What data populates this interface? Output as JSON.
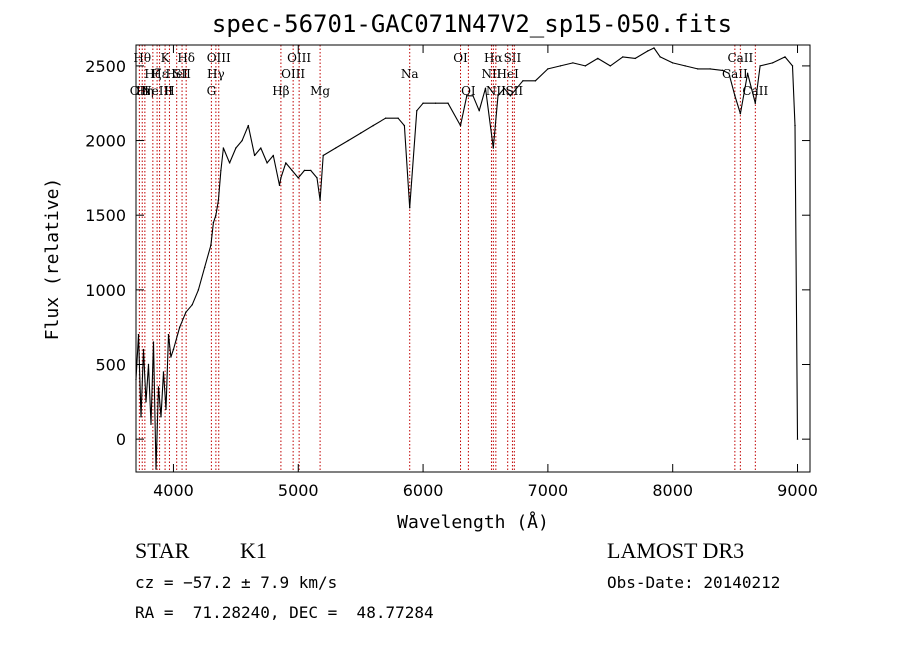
{
  "chart_data": {
    "type": "line",
    "title": "spec-56701-GAC071N47V2_sp15-050.fits",
    "xlabel": "Wavelength (Å)",
    "ylabel": "Flux (relative)",
    "xlim": [
      3700,
      9100
    ],
    "ylim": [
      -220,
      2640
    ],
    "xticks": [
      4000,
      5000,
      6000,
      7000,
      8000,
      9000
    ],
    "yticks": [
      0,
      500,
      1000,
      1500,
      2000,
      2500
    ],
    "grid": false,
    "line_color": "#000000",
    "marker_color": "#c00000",
    "series": [
      {
        "x": [
          3700,
          3720,
          3740,
          3760,
          3780,
          3800,
          3820,
          3840,
          3860,
          3880,
          3900,
          3920,
          3940,
          3960,
          3980,
          4000,
          4050,
          4100,
          4150,
          4200,
          4250,
          4300,
          4320,
          4340,
          4360,
          4380,
          4400,
          4450,
          4500,
          4550,
          4600,
          4650,
          4700,
          4750,
          4800,
          4850,
          4861,
          4900,
          4950,
          5000,
          5050,
          5100,
          5150,
          5175,
          5200,
          5300,
          5400,
          5500,
          5600,
          5700,
          5800,
          5850,
          5893,
          5950,
          6000,
          6100,
          6200,
          6300,
          6350,
          6400,
          6450,
          6500,
          6563,
          6600,
          6650,
          6700,
          6800,
          6900,
          7000,
          7100,
          7200,
          7300,
          7400,
          7500,
          7600,
          7700,
          7800,
          7850,
          7900,
          8000,
          8100,
          8200,
          8300,
          8400,
          8450,
          8498,
          8542,
          8600,
          8662,
          8700,
          8800,
          8900,
          8960,
          8980,
          9000
        ],
        "y": [
          400,
          700,
          150,
          600,
          250,
          500,
          100,
          650,
          -200,
          350,
          150,
          450,
          200,
          700,
          550,
          600,
          750,
          850,
          900,
          1000,
          1150,
          1300,
          1450,
          1500,
          1600,
          1800,
          1950,
          1850,
          1950,
          2000,
          2100,
          1900,
          1950,
          1850,
          1900,
          1700,
          1750,
          1850,
          1800,
          1750,
          1800,
          1800,
          1750,
          1600,
          1900,
          1950,
          2000,
          2050,
          2100,
          2150,
          2150,
          2100,
          1550,
          2200,
          2250,
          2250,
          2250,
          2100,
          2300,
          2300,
          2200,
          2350,
          1950,
          2300,
          2350,
          2300,
          2400,
          2400,
          2480,
          2500,
          2520,
          2500,
          2550,
          2500,
          2560,
          2550,
          2600,
          2620,
          2560,
          2520,
          2500,
          2480,
          2480,
          2470,
          2450,
          2300,
          2180,
          2450,
          2250,
          2500,
          2520,
          2560,
          2500,
          2100,
          0
        ]
      }
    ],
    "lines": [
      {
        "wl": 3727,
        "label": "OII",
        "row": 3
      },
      {
        "wl": 3750,
        "label": "Hθ",
        "row": 1
      },
      {
        "wl": 3771,
        "label": "Hη",
        "row": 3
      },
      {
        "wl": 3835,
        "label": "Hζ",
        "row": 2
      },
      {
        "wl": 3869,
        "label": "NeIII",
        "row": 3
      },
      {
        "wl": 3889,
        "label": "Hε",
        "row": 2
      },
      {
        "wl": 3933,
        "label": "K",
        "row": 1
      },
      {
        "wl": 3968,
        "label": "H",
        "row": 3
      },
      {
        "wl": 4026,
        "label": "HeI",
        "row": 2
      },
      {
        "wl": 4069,
        "label": "SII",
        "row": 2
      },
      {
        "wl": 4102,
        "label": "Hδ",
        "row": 1
      },
      {
        "wl": 4304,
        "label": "G",
        "row": 3
      },
      {
        "wl": 4340,
        "label": "Hγ",
        "row": 2
      },
      {
        "wl": 4363,
        "label": "OIII",
        "row": 1
      },
      {
        "wl": 4861,
        "label": "Hβ",
        "row": 3
      },
      {
        "wl": 4959,
        "label": "OIII",
        "row": 2
      },
      {
        "wl": 5007,
        "label": "OIII",
        "row": 1
      },
      {
        "wl": 5175,
        "label": "Mg",
        "row": 3
      },
      {
        "wl": 5893,
        "label": "Na",
        "row": 2
      },
      {
        "wl": 6300,
        "label": "OI",
        "row": 1
      },
      {
        "wl": 6363,
        "label": "OI",
        "row": 3
      },
      {
        "wl": 6548,
        "label": "NII",
        "row": 2
      },
      {
        "wl": 6563,
        "label": "Hα",
        "row": 1
      },
      {
        "wl": 6583,
        "label": "NII",
        "row": 3
      },
      {
        "wl": 6678,
        "label": "HeI",
        "row": 2
      },
      {
        "wl": 6716,
        "label": "SII",
        "row": 1
      },
      {
        "wl": 6731,
        "label": "SII",
        "row": 3
      },
      {
        "wl": 8498,
        "label": "CaII",
        "row": 2
      },
      {
        "wl": 8542,
        "label": "CaII",
        "row": 1
      },
      {
        "wl": 8662,
        "label": "CaII",
        "row": 3
      }
    ]
  },
  "info": {
    "class_label": "STAR",
    "subclass_label": "K1",
    "survey": "LAMOST DR3",
    "cz": "cz = −57.2 ± 7.9 km/s",
    "obs_date": "Obs-Date: 20140212",
    "coords": "RA =  71.28240, DEC =  48.77284"
  }
}
